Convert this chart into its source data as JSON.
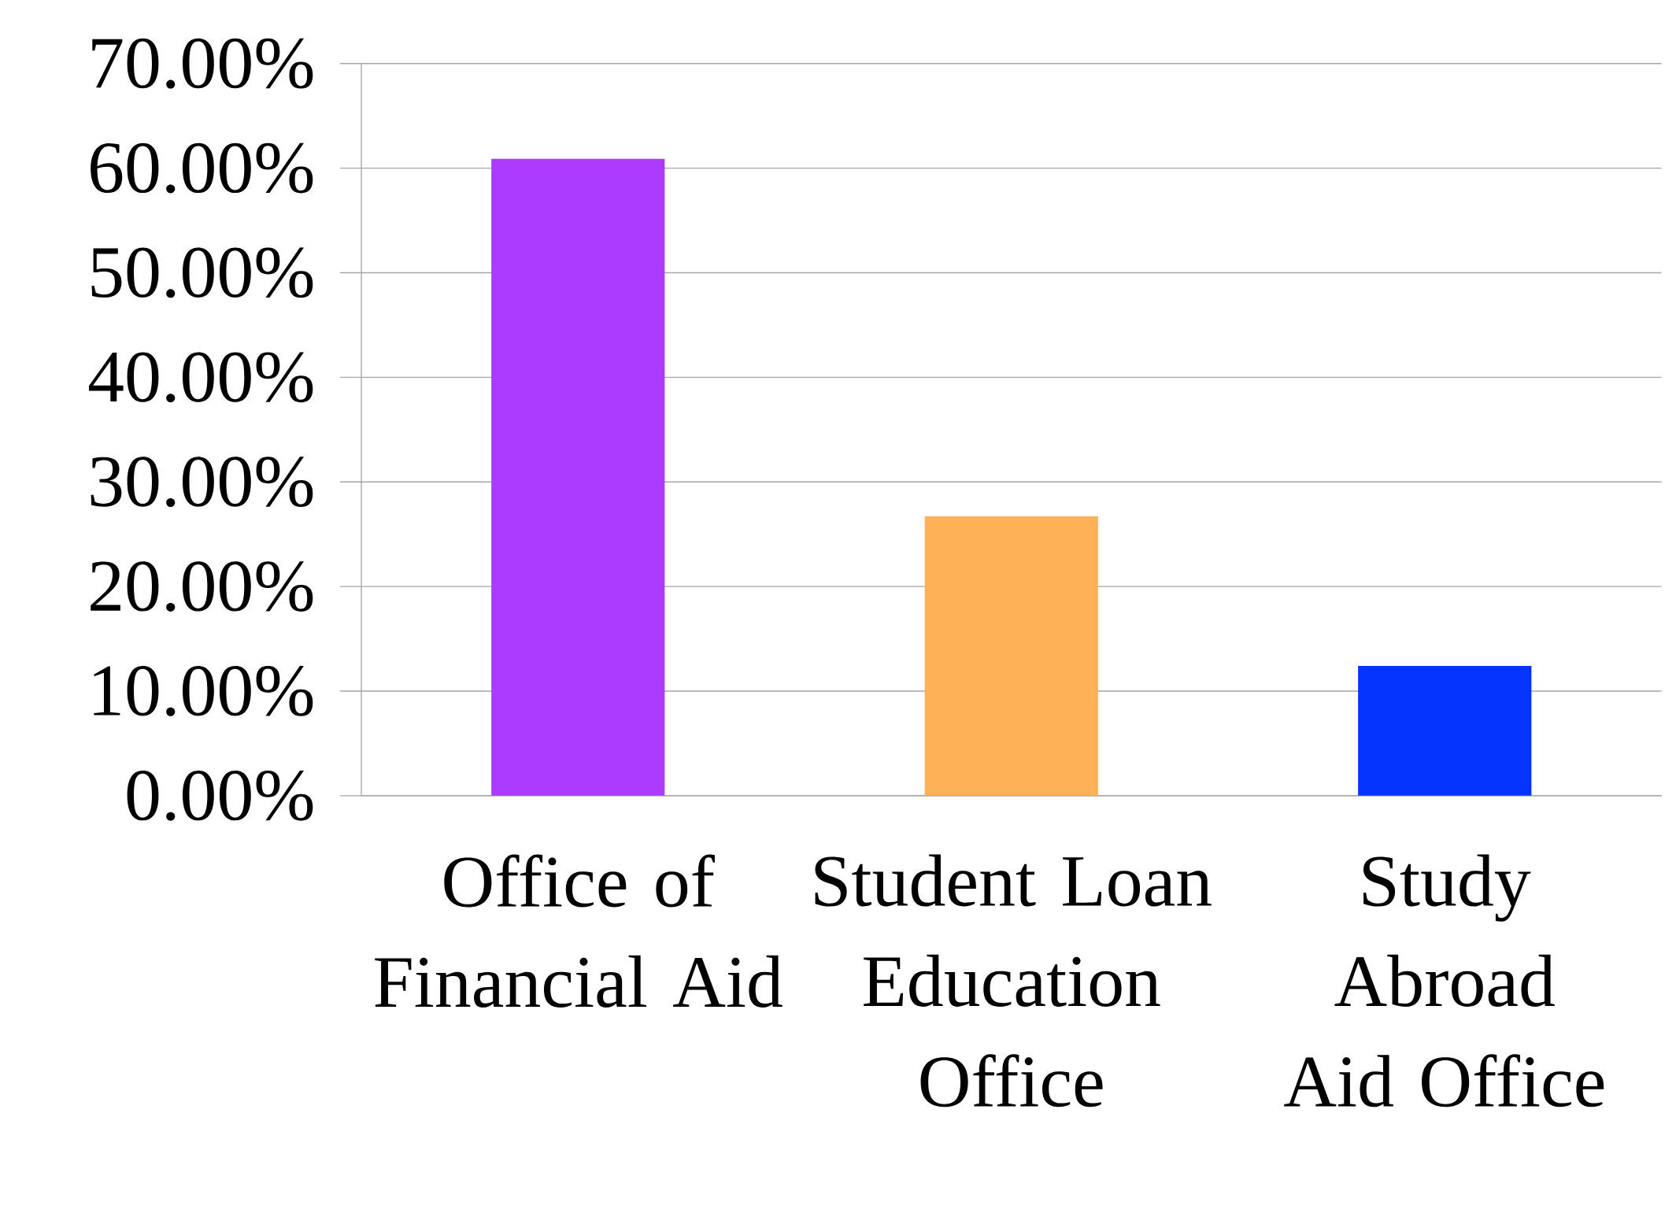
{
  "chart_data": {
    "type": "bar",
    "categories": [
      "Office of Financial Aid",
      "Student Loan Education Office",
      "Study Abroad Aid Office"
    ],
    "values": [
      60.9,
      26.7,
      12.4
    ],
    "colors": [
      "#aa3bff",
      "#ffb155",
      "#0433ff"
    ],
    "ylim": [
      0,
      70
    ],
    "yticks": [
      {
        "value": 0,
        "label": "0.00%"
      },
      {
        "value": 10,
        "label": "10.00%"
      },
      {
        "value": 20,
        "label": "20.00%"
      },
      {
        "value": 30,
        "label": "30.00%"
      },
      {
        "value": 40,
        "label": "40.00%"
      },
      {
        "value": 50,
        "label": "50.00%"
      },
      {
        "value": 60,
        "label": "60.00%"
      },
      {
        "value": 70,
        "label": "70.00%"
      }
    ],
    "grid": "y"
  }
}
